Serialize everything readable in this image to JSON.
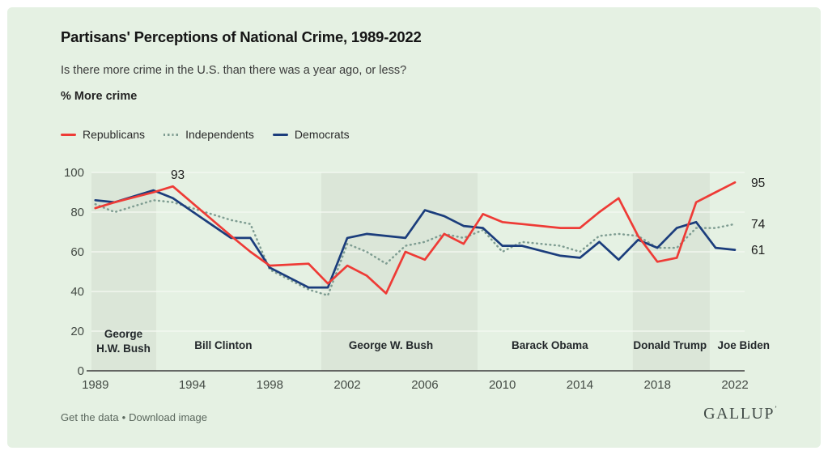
{
  "header": {
    "title": "Partisans' Perceptions of National Crime, 1989-2022",
    "subtitle": "Is there more crime in the U.S. than there was a year ago, or less?",
    "axis_note": "% More crime"
  },
  "colors": {
    "card_bg": "#e5f1e3",
    "band": "#dbe6d8",
    "gridline": "#f5f9f3",
    "axis": "#3c3c3c",
    "tick_text": "#434a44",
    "era_text": "#23282b",
    "value_text": "#1d1d1d"
  },
  "footer": {
    "link1": "Get the data",
    "separator": "•",
    "link2": "Download image",
    "brand": "GALLUP",
    "brand_mark": "’"
  },
  "chart_data": {
    "type": "line",
    "title": "Partisans' Perceptions of National Crime, 1989-2022",
    "xlabel": "",
    "ylabel": "% More crime",
    "ylim": [
      0,
      100
    ],
    "xlim": [
      1988.8,
      2022.5
    ],
    "grid": true,
    "legend_position": "top-left",
    "x_ticks": [
      1989,
      1994,
      1998,
      2002,
      2006,
      2010,
      2014,
      2018,
      2022
    ],
    "y_ticks": [
      0,
      20,
      40,
      60,
      80,
      100
    ],
    "x": [
      1989,
      1990,
      1992,
      1993,
      1996,
      1997,
      1998,
      2000,
      2001,
      2002,
      2003,
      2004,
      2005,
      2006,
      2007,
      2008,
      2009,
      2010,
      2011,
      2013,
      2014,
      2015,
      2016,
      2017,
      2018,
      2019,
      2020,
      2021,
      2022
    ],
    "series": [
      {
        "name": "Republicans",
        "color": "#ee3b36",
        "dash": "solid",
        "values": [
          82,
          85,
          90,
          93,
          68,
          60,
          53,
          54,
          44,
          53,
          48,
          39,
          60,
          56,
          69,
          64,
          79,
          75,
          74,
          72,
          72,
          80,
          87,
          68,
          55,
          57,
          85,
          90,
          95
        ]
      },
      {
        "name": "Independents",
        "color": "#7f9d92",
        "dash": "dotted",
        "values": [
          84,
          80,
          86,
          85,
          76,
          74,
          51,
          41,
          38,
          64,
          60,
          54,
          63,
          65,
          69,
          67,
          71,
          60,
          65,
          63,
          60,
          68,
          69,
          68,
          62,
          62,
          72,
          72,
          74
        ]
      },
      {
        "name": "Democrats",
        "color": "#1b3d7c",
        "dash": "solid",
        "values": [
          86,
          85,
          91,
          87,
          67,
          67,
          52,
          42,
          42,
          67,
          69,
          68,
          67,
          81,
          78,
          73,
          72,
          63,
          63,
          58,
          57,
          65,
          56,
          66,
          62,
          72,
          75,
          62,
          61
        ]
      }
    ],
    "point_labels": [
      {
        "series": "Republicans",
        "year": 1993,
        "text": "93",
        "dx": 6,
        "dy": -9
      }
    ],
    "end_labels": [
      {
        "series": "Republicans",
        "text": "95"
      },
      {
        "series": "Independents",
        "text": "74"
      },
      {
        "series": "Democrats",
        "text": "61"
      }
    ],
    "eras": [
      {
        "label": "George\nH.W. Bush",
        "start": 1988.8,
        "end": 1992.14,
        "shaded": true,
        "label_year": 1990.45
      },
      {
        "label": "Bill Clinton",
        "start": 1992.14,
        "end": 2000.66,
        "shaded": false,
        "label_year": 1995.6
      },
      {
        "label": "George W. Bush",
        "start": 2000.66,
        "end": 2008.72,
        "shaded": true,
        "label_year": 2004.25
      },
      {
        "label": "Barack Obama",
        "start": 2008.72,
        "end": 2016.73,
        "shaded": false,
        "label_year": 2012.45
      },
      {
        "label": "Donald Trump",
        "start": 2016.73,
        "end": 2020.7,
        "shaded": true,
        "label_year": 2018.65
      },
      {
        "label": "Joe Biden",
        "start": 2020.7,
        "end": 2022.5,
        "shaded": false,
        "label_year": 2022.45
      }
    ]
  }
}
